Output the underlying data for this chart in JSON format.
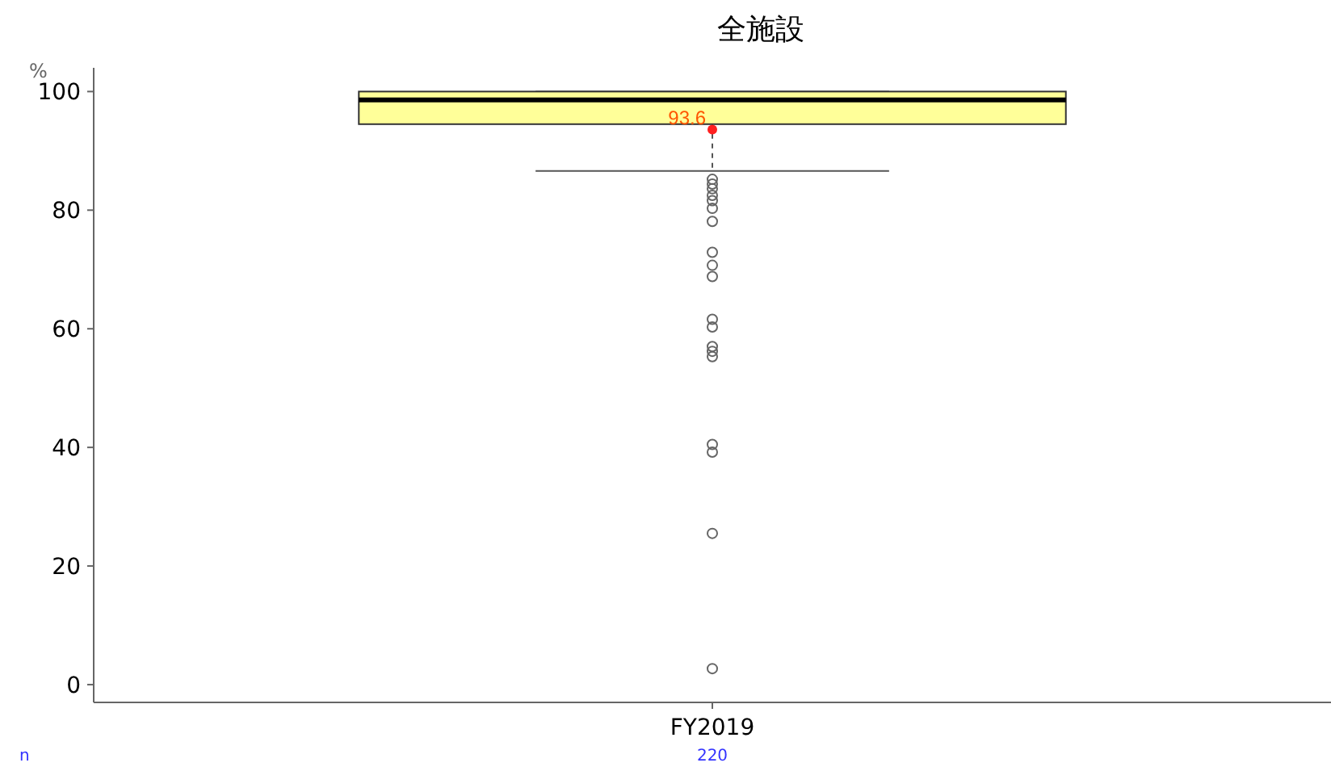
{
  "chart_data": {
    "type": "box",
    "title": "全施設",
    "ylabel": "%",
    "categories": [
      "FY2019"
    ],
    "boxes": [
      {
        "low": 86.6,
        "q1": 94.5,
        "median": 98.6,
        "q3": 100,
        "high": 100,
        "mean": 93.6,
        "outliers": [
          85.2,
          84.4,
          83.6,
          82.5,
          81.6,
          80.3,
          78.1,
          72.9,
          70.7,
          68.8,
          61.6,
          60.3,
          57.0,
          56.2,
          55.3,
          40.5,
          39.2,
          25.5,
          2.7
        ]
      }
    ],
    "color": "#ffff99",
    "value_labels": [
      "93.6"
    ],
    "ylim": [
      -3,
      104
    ],
    "yticks": [
      0,
      20,
      40,
      60,
      80,
      100
    ],
    "grid": false,
    "annotations": [
      "n",
      "220"
    ]
  }
}
